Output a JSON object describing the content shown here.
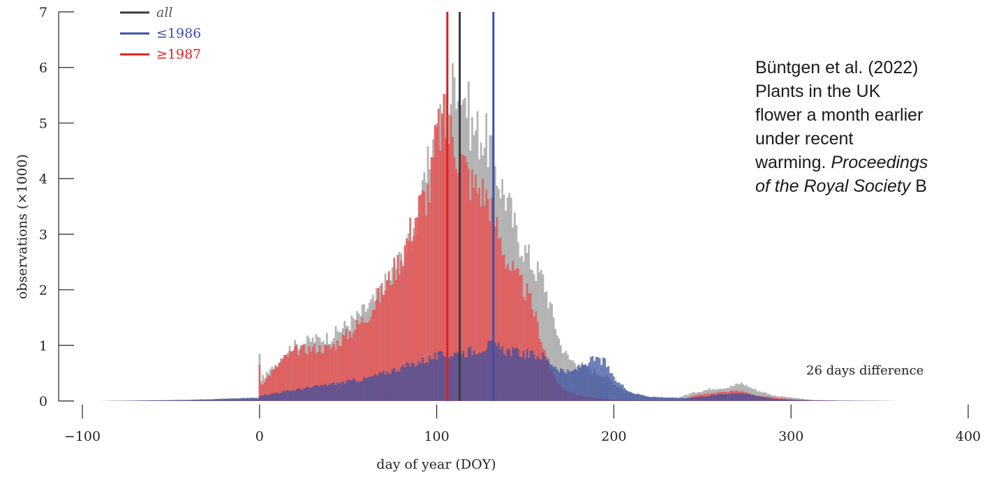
{
  "chart_data": {
    "type": "bar",
    "xlabel": "day of year (DOY)",
    "ylabel": "observations (×1000)",
    "xlim": [
      -100,
      400
    ],
    "ylim": [
      0,
      7
    ],
    "x_ticks": [
      -100,
      0,
      100,
      200,
      300,
      400
    ],
    "x_tick_labels": [
      "−100",
      "0",
      "100",
      "200",
      "300",
      "400"
    ],
    "y_ticks": [
      0,
      1,
      2,
      3,
      4,
      5,
      6,
      7
    ],
    "legend_position": "top-left",
    "series": [
      {
        "name": "all",
        "color": "#b3b3b3",
        "line_color": "#3a3a3a",
        "mean_doy": 113,
        "profile_days": [
          -90,
          -40,
          -5,
          -1,
          0,
          1,
          5,
          15,
          20,
          30,
          40,
          55,
          65,
          75,
          85,
          92,
          97,
          100,
          104,
          108,
          110,
          112,
          116,
          120,
          125,
          130,
          135,
          140,
          145,
          150,
          155,
          160,
          165,
          170,
          175,
          185,
          195,
          205,
          215,
          225,
          235,
          245,
          255,
          265,
          272,
          280,
          290,
          300,
          312,
          325,
          360
        ],
        "profile_values": [
          0.0,
          0.02,
          0.06,
          0.06,
          0.8,
          0.4,
          0.5,
          0.9,
          1.0,
          1.1,
          1.15,
          1.5,
          1.8,
          2.3,
          2.8,
          3.6,
          4.5,
          4.8,
          5.1,
          5.5,
          5.8,
          5.9,
          5.5,
          4.9,
          4.8,
          4.6,
          4.0,
          3.6,
          3.0,
          2.7,
          2.4,
          2.2,
          1.6,
          1.0,
          0.75,
          0.6,
          0.45,
          0.2,
          0.1,
          0.05,
          0.05,
          0.15,
          0.22,
          0.25,
          0.32,
          0.2,
          0.1,
          0.06,
          0.02,
          0.01,
          0.0
        ]
      },
      {
        "name": "≤1986",
        "color": "#3a4fa0",
        "line_color": "#3b4ea8",
        "mean_doy": 132,
        "profile_days": [
          -90,
          -40,
          -5,
          -1,
          0,
          20,
          40,
          60,
          80,
          100,
          120,
          130,
          140,
          150,
          160,
          168,
          175,
          180,
          185,
          190,
          195,
          200,
          210,
          220,
          240,
          250,
          260,
          270,
          280,
          290,
          300,
          312,
          360
        ],
        "profile_values": [
          0.0,
          0.02,
          0.05,
          0.05,
          0.1,
          0.2,
          0.3,
          0.4,
          0.6,
          0.8,
          0.9,
          1.0,
          0.9,
          0.85,
          0.8,
          0.6,
          0.5,
          0.6,
          0.7,
          0.75,
          0.7,
          0.4,
          0.15,
          0.08,
          0.05,
          0.08,
          0.12,
          0.15,
          0.1,
          0.04,
          0.02,
          0.01,
          0.0
        ]
      },
      {
        "name": "≥1987",
        "color": "#e15a5a",
        "line_color": "#e01f1f",
        "mean_doy": 106,
        "profile_days": [
          -90,
          -40,
          -5,
          -1,
          0,
          1,
          5,
          15,
          20,
          30,
          40,
          50,
          60,
          70,
          80,
          90,
          96,
          100,
          104,
          108,
          112,
          116,
          120,
          125,
          130,
          135,
          140,
          145,
          150,
          155,
          160,
          165,
          170,
          180,
          190,
          200,
          220,
          240,
          245,
          250,
          260,
          270,
          275,
          280,
          290,
          300,
          312,
          360
        ],
        "profile_values": [
          0.0,
          0.01,
          0.02,
          0.02,
          0.7,
          0.3,
          0.45,
          0.8,
          0.9,
          0.95,
          0.95,
          1.2,
          1.5,
          2.0,
          2.6,
          3.5,
          3.8,
          4.8,
          5.0,
          4.8,
          4.5,
          4.2,
          3.9,
          3.8,
          3.6,
          3.0,
          2.5,
          2.2,
          2.0,
          1.6,
          1.0,
          0.5,
          0.25,
          0.1,
          0.05,
          0.02,
          0.01,
          0.02,
          0.1,
          0.12,
          0.15,
          0.18,
          0.15,
          0.1,
          0.06,
          0.03,
          0.01,
          0.0
        ]
      }
    ],
    "annotations": [
      "26 days difference"
    ]
  },
  "citation": {
    "line1": "Büntgen et al. (2022)",
    "line2": "Plants in the UK",
    "line3": "flower a month earlier",
    "line4": "under recent",
    "line5_prefix": "warming. ",
    "line5_italic": "Proceedings",
    "line6_italic": "of the Royal Society",
    "line6_suffix": " B"
  }
}
